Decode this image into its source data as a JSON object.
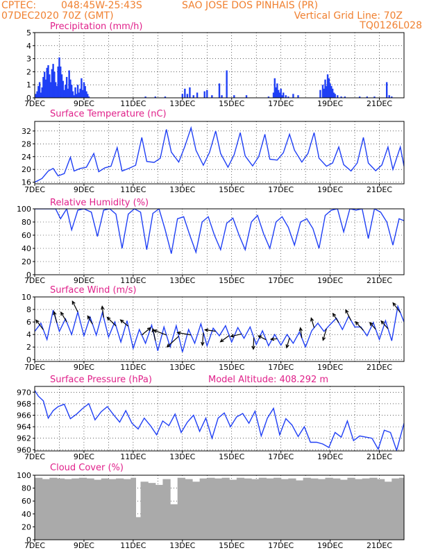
{
  "header": {
    "org": "CPTEC:",
    "coords": "048:45W-25:43S",
    "location": "SAO JOSE DOS PINHAIS (PR)",
    "datetime": "07DEC2020 70Z (GMT)",
    "grid_note": "Vertical Grid Line: 70Z",
    "code": "TQ0126L028"
  },
  "colors": {
    "header": "#f08030",
    "title": "#e0208a",
    "series": "#1f3ff5",
    "cloud": "#aaaaaa",
    "arrow": "#000000"
  },
  "x_ticks": [
    "7DEC",
    "9DEC",
    "11DEC",
    "13DEC",
    "15DEC",
    "17DEC",
    "19DEC",
    "21DEC"
  ],
  "chart_data": [
    {
      "id": "precip",
      "type": "bar",
      "title": "Precipitation (mm/h)",
      "xlim": [
        7,
        22
      ],
      "ylim": [
        0,
        5
      ],
      "yticks": [
        0,
        1,
        2,
        3,
        4,
        5
      ],
      "x": [
        7.05,
        7.1,
        7.15,
        7.2,
        7.25,
        7.3,
        7.35,
        7.4,
        7.45,
        7.5,
        7.55,
        7.6,
        7.65,
        7.7,
        7.75,
        7.8,
        7.85,
        7.9,
        7.95,
        8.0,
        8.05,
        8.1,
        8.15,
        8.2,
        8.25,
        8.3,
        8.35,
        8.4,
        8.45,
        8.5,
        8.55,
        8.6,
        8.65,
        8.7,
        8.75,
        8.8,
        8.85,
        8.9,
        8.95,
        9.0,
        9.05,
        9.1,
        9.15,
        9.2,
        11.5,
        11.9,
        12.3,
        13.0,
        13.1,
        13.2,
        13.3,
        13.45,
        13.6,
        13.9,
        14.0,
        14.2,
        14.5,
        14.6,
        14.8,
        15.1,
        15.6,
        16.5,
        16.7,
        16.75,
        16.8,
        16.85,
        16.9,
        16.95,
        17.0,
        17.05,
        17.1,
        17.2,
        17.3,
        17.5,
        17.7,
        18.6,
        18.7,
        18.75,
        18.8,
        18.85,
        18.9,
        18.95,
        19.0,
        19.05,
        19.1,
        19.15,
        19.2,
        19.3,
        19.45,
        19.6,
        20.2,
        20.5,
        20.8,
        21.3,
        21.4,
        21.5
      ],
      "values": [
        0.3,
        0.5,
        0.9,
        1.2,
        0.4,
        0.8,
        1.6,
        2.0,
        1.4,
        2.3,
        2.5,
        1.8,
        1.2,
        2.2,
        2.6,
        2.0,
        1.2,
        0.9,
        2.4,
        3.1,
        2.4,
        1.8,
        1.3,
        0.6,
        1.0,
        1.6,
        0.7,
        2.1,
        1.4,
        1.0,
        0.5,
        0.2,
        0.8,
        0.3,
        1.0,
        0.4,
        0.7,
        1.5,
        0.6,
        1.2,
        0.9,
        0.5,
        0.3,
        0.1,
        0.1,
        0.1,
        0.1,
        0.3,
        0.7,
        0.3,
        0.8,
        0.2,
        0.4,
        0.5,
        0.6,
        0.2,
        1.1,
        0.2,
        2.1,
        0.2,
        0.2,
        0.1,
        0.4,
        1.5,
        0.8,
        1.1,
        0.6,
        0.4,
        0.7,
        0.2,
        0.4,
        0.2,
        0.1,
        0.3,
        0.2,
        0.6,
        1.0,
        0.7,
        1.4,
        0.9,
        1.8,
        1.5,
        1.1,
        0.9,
        0.7,
        0.4,
        0.3,
        0.2,
        0.1,
        0.1,
        0.1,
        0.1,
        0.1,
        1.2,
        0.2,
        0.1
      ]
    },
    {
      "id": "temperature",
      "type": "line",
      "title": "Surface Temperature (nC)",
      "xlim": [
        7,
        22
      ],
      "ylim": [
        15.5,
        35
      ],
      "yticks": [
        16,
        20,
        24,
        28,
        32
      ],
      "x": [
        7.0,
        7.3,
        7.55,
        7.75,
        7.95,
        8.2,
        8.45,
        8.6,
        8.85,
        9.1,
        9.4,
        9.6,
        9.85,
        10.1,
        10.35,
        10.55,
        10.85,
        11.1,
        11.35,
        11.55,
        11.85,
        12.1,
        12.35,
        12.55,
        12.85,
        13.1,
        13.35,
        13.55,
        13.85,
        14.1,
        14.35,
        14.55,
        14.85,
        15.1,
        15.35,
        15.55,
        15.85,
        16.1,
        16.35,
        16.55,
        16.85,
        17.1,
        17.35,
        17.55,
        17.85,
        18.1,
        18.35,
        18.55,
        18.85,
        19.1,
        19.35,
        19.55,
        19.85,
        20.1,
        20.35,
        20.55,
        20.85,
        21.1,
        21.35,
        21.55,
        21.85,
        22.0
      ],
      "values": [
        16.0,
        17.2,
        19.5,
        20.3,
        18.0,
        18.7,
        23.8,
        19.5,
        20.3,
        20.7,
        25.0,
        19.3,
        20.5,
        21.0,
        26.8,
        19.5,
        20.4,
        21.3,
        30.0,
        22.5,
        22.2,
        23.5,
        32.5,
        25.4,
        22.3,
        27.2,
        33.0,
        26.0,
        21.3,
        25.3,
        32.0,
        25.0,
        20.7,
        24.6,
        31.5,
        24.2,
        21.1,
        24.0,
        31.0,
        23.2,
        22.9,
        25.2,
        31.0,
        26.0,
        22.3,
        25.0,
        31.5,
        23.5,
        21.0,
        22.0,
        27.0,
        21.5,
        19.5,
        22.0,
        30.0,
        22.0,
        19.6,
        21.4,
        27.0,
        20.0,
        27.0,
        21.0
      ]
    },
    {
      "id": "humidity",
      "type": "line",
      "title": "Relative Humidity (%)",
      "xlim": [
        7,
        22
      ],
      "ylim": [
        0,
        100
      ],
      "yticks": [
        0,
        20,
        40,
        60,
        80,
        100
      ],
      "x": [
        7.0,
        7.35,
        7.6,
        7.85,
        8.05,
        8.3,
        8.5,
        8.75,
        9.0,
        9.3,
        9.55,
        9.8,
        10.05,
        10.3,
        10.55,
        10.8,
        11.05,
        11.3,
        11.55,
        11.8,
        12.05,
        12.3,
        12.55,
        12.8,
        13.05,
        13.3,
        13.55,
        13.8,
        14.05,
        14.3,
        14.55,
        14.8,
        15.05,
        15.3,
        15.55,
        15.8,
        16.05,
        16.3,
        16.55,
        16.8,
        17.05,
        17.3,
        17.55,
        17.8,
        18.05,
        18.3,
        18.55,
        18.8,
        19.05,
        19.3,
        19.55,
        19.8,
        20.05,
        20.3,
        20.55,
        20.8,
        21.05,
        21.3,
        21.55,
        21.8,
        22.0
      ],
      "values": [
        100,
        100,
        100,
        100,
        85,
        100,
        68,
        98,
        100,
        95,
        58,
        98,
        100,
        92,
        40,
        92,
        100,
        95,
        38,
        93,
        100,
        68,
        32,
        85,
        88,
        60,
        34,
        80,
        88,
        60,
        38,
        78,
        86,
        60,
        38,
        80,
        90,
        62,
        40,
        80,
        88,
        72,
        45,
        80,
        85,
        70,
        40,
        90,
        98,
        100,
        65,
        100,
        98,
        100,
        55,
        100,
        95,
        80,
        45,
        85,
        82
      ]
    },
    {
      "id": "wind",
      "type": "line",
      "title": "Surface Wind (m/s)",
      "xlim": [
        7,
        22
      ],
      "ylim": [
        -0.3,
        10
      ],
      "yticks": [
        0,
        2,
        4,
        6,
        8,
        10
      ],
      "x": [
        7.0,
        7.25,
        7.5,
        7.75,
        8.0,
        8.25,
        8.5,
        8.75,
        9.0,
        9.25,
        9.5,
        9.75,
        10.0,
        10.25,
        10.5,
        10.75,
        11.0,
        11.25,
        11.5,
        11.75,
        12.0,
        12.25,
        12.5,
        12.75,
        13.0,
        13.25,
        13.5,
        13.75,
        14.0,
        14.25,
        14.5,
        14.75,
        15.0,
        15.25,
        15.5,
        15.75,
        16.0,
        16.25,
        16.5,
        16.75,
        17.0,
        17.25,
        17.5,
        17.75,
        18.0,
        18.25,
        18.5,
        18.75,
        19.0,
        19.25,
        19.5,
        19.75,
        20.0,
        20.25,
        20.5,
        20.75,
        21.0,
        21.25,
        21.5,
        21.75,
        22.0
      ],
      "values": [
        4.5,
        5.8,
        3.2,
        7.9,
        4.5,
        6.5,
        4.0,
        7.6,
        3.8,
        6.8,
        3.9,
        7.5,
        3.6,
        6.0,
        2.8,
        6.2,
        1.8,
        4.8,
        2.6,
        5.5,
        1.4,
        5.2,
        2.0,
        5.4,
        1.2,
        4.8,
        2.6,
        5.7,
        2.2,
        5.0,
        3.8,
        5.4,
        2.8,
        5.1,
        3.4,
        5.2,
        2.4,
        4.6,
        2.2,
        4.0,
        2.3,
        4.0,
        2.6,
        4.4,
        2.0,
        4.6,
        5.8,
        4.5,
        5.6,
        6.6,
        4.8,
        6.9,
        5.2,
        5.2,
        3.8,
        5.9,
        3.2,
        6.2,
        3.0,
        8.5,
        6.0
      ],
      "vectors": [
        {
          "x": 7.35,
          "u": -1.5,
          "v": 2.0
        },
        {
          "x": 7.9,
          "u": -0.6,
          "v": 2.3
        },
        {
          "x": 8.3,
          "u": -1.2,
          "v": 2.0
        },
        {
          "x": 8.75,
          "u": -1.1,
          "v": 2.2
        },
        {
          "x": 9.35,
          "u": -1.0,
          "v": 1.7
        },
        {
          "x": 9.8,
          "u": -0.3,
          "v": 2.3
        },
        {
          "x": 10.3,
          "u": -1.8,
          "v": 1.8
        },
        {
          "x": 10.8,
          "u": -1.6,
          "v": 1.3
        },
        {
          "x": 11.35,
          "u": 1.8,
          "v": 1.5
        },
        {
          "x": 11.9,
          "u": -0.5,
          "v": 2.4
        },
        {
          "x": 12.35,
          "u": -2.6,
          "v": 1.0
        },
        {
          "x": 12.85,
          "u": -2.4,
          "v": -2.2
        },
        {
          "x": 13.35,
          "u": -2.8,
          "v": 0.5
        },
        {
          "x": 13.85,
          "u": -0.2,
          "v": -2.6
        },
        {
          "x": 14.35,
          "u": -2.2,
          "v": 0.3
        },
        {
          "x": 14.9,
          "u": -1.8,
          "v": -1.3
        },
        {
          "x": 15.4,
          "u": -2.2,
          "v": -0.5
        },
        {
          "x": 15.9,
          "u": -0.1,
          "v": -2.4
        },
        {
          "x": 16.4,
          "u": -1.6,
          "v": 0.8
        },
        {
          "x": 16.85,
          "u": -1.3,
          "v": -0.1
        },
        {
          "x": 17.35,
          "u": -0.6,
          "v": -2.0
        },
        {
          "x": 17.85,
          "u": -0.3,
          "v": 2.1
        },
        {
          "x": 18.35,
          "u": -0.6,
          "v": 2.0
        },
        {
          "x": 18.85,
          "u": -0.7,
          "v": -2.4
        },
        {
          "x": 19.35,
          "u": -1.2,
          "v": 1.9
        },
        {
          "x": 19.85,
          "u": -1.1,
          "v": 2.2
        },
        {
          "x": 20.35,
          "u": -1.6,
          "v": 1.8
        },
        {
          "x": 20.85,
          "u": -1.2,
          "v": 1.4
        },
        {
          "x": 21.35,
          "u": -1.4,
          "v": 1.6
        },
        {
          "x": 21.85,
          "u": -1.5,
          "v": 2.0
        }
      ]
    },
    {
      "id": "pressure",
      "type": "line",
      "title": "Surface Pressure (hPa)",
      "subtitle": "Model Altitude: 408.292 m",
      "xlim": [
        7,
        22
      ],
      "ylim": [
        959.8,
        971
      ],
      "yticks": [
        960,
        962,
        964,
        966,
        968,
        970
      ],
      "x": [
        7.0,
        7.15,
        7.35,
        7.55,
        7.75,
        7.95,
        8.2,
        8.45,
        8.7,
        8.95,
        9.2,
        9.45,
        9.7,
        9.95,
        10.2,
        10.45,
        10.7,
        10.95,
        11.2,
        11.45,
        11.7,
        11.95,
        12.2,
        12.45,
        12.7,
        12.95,
        13.2,
        13.45,
        13.7,
        13.95,
        14.2,
        14.45,
        14.7,
        14.95,
        15.2,
        15.45,
        15.7,
        15.95,
        16.2,
        16.45,
        16.7,
        16.95,
        17.2,
        17.45,
        17.7,
        17.95,
        18.2,
        18.45,
        18.7,
        18.95,
        19.2,
        19.45,
        19.7,
        19.95,
        20.2,
        20.45,
        20.7,
        20.95,
        21.2,
        21.45,
        21.7,
        22.0
      ],
      "values": [
        970.3,
        969.3,
        968.5,
        965.5,
        966.8,
        967.5,
        967.9,
        965.4,
        966.2,
        967.2,
        968.0,
        965.2,
        966.6,
        967.5,
        966.1,
        964.8,
        966.8,
        964.6,
        963.6,
        965.5,
        964.2,
        962.6,
        965.0,
        964.2,
        966.2,
        963.0,
        964.8,
        966.0,
        963.2,
        965.5,
        962.0,
        965.5,
        966.4,
        964.0,
        965.7,
        966.3,
        964.6,
        966.7,
        962.4,
        965.5,
        967.2,
        962.6,
        965.4,
        964.3,
        962.3,
        964.0,
        961.3,
        961.3,
        961.0,
        960.4,
        963.0,
        962.2,
        965.0,
        961.6,
        962.4,
        962.2,
        962.0,
        960.1,
        963.4,
        963.0,
        959.9,
        964.6
      ]
    },
    {
      "id": "cloud",
      "type": "area",
      "title": "Cloud Cover (%)",
      "xlim": [
        7,
        22
      ],
      "ylim": [
        0,
        100
      ],
      "yticks": [
        0,
        20,
        40,
        60,
        80,
        100
      ],
      "x": [
        7.0,
        7.3,
        7.6,
        7.9,
        8.2,
        8.5,
        8.8,
        9.1,
        9.4,
        9.7,
        10.0,
        10.3,
        10.6,
        10.9,
        11.1,
        11.3,
        11.6,
        11.9,
        12.2,
        12.5,
        12.8,
        13.1,
        13.4,
        13.7,
        14.0,
        14.3,
        14.6,
        14.9,
        15.2,
        15.5,
        15.8,
        16.1,
        16.4,
        16.7,
        17.0,
        17.3,
        17.6,
        17.9,
        18.2,
        18.5,
        18.8,
        19.1,
        19.4,
        19.7,
        20.0,
        20.3,
        20.6,
        20.9,
        21.2,
        21.5,
        21.8,
        22.0
      ],
      "values": [
        96,
        94,
        96,
        95,
        94,
        95,
        96,
        95,
        93,
        95,
        94,
        95,
        94,
        96,
        35,
        90,
        88,
        85,
        94,
        55,
        96,
        94,
        90,
        95,
        96,
        95,
        96,
        93,
        96,
        95,
        94,
        96,
        95,
        96,
        94,
        95,
        92,
        96,
        95,
        94,
        96,
        95,
        93,
        96,
        94,
        95,
        96,
        94,
        90,
        95,
        96,
        95
      ]
    }
  ]
}
